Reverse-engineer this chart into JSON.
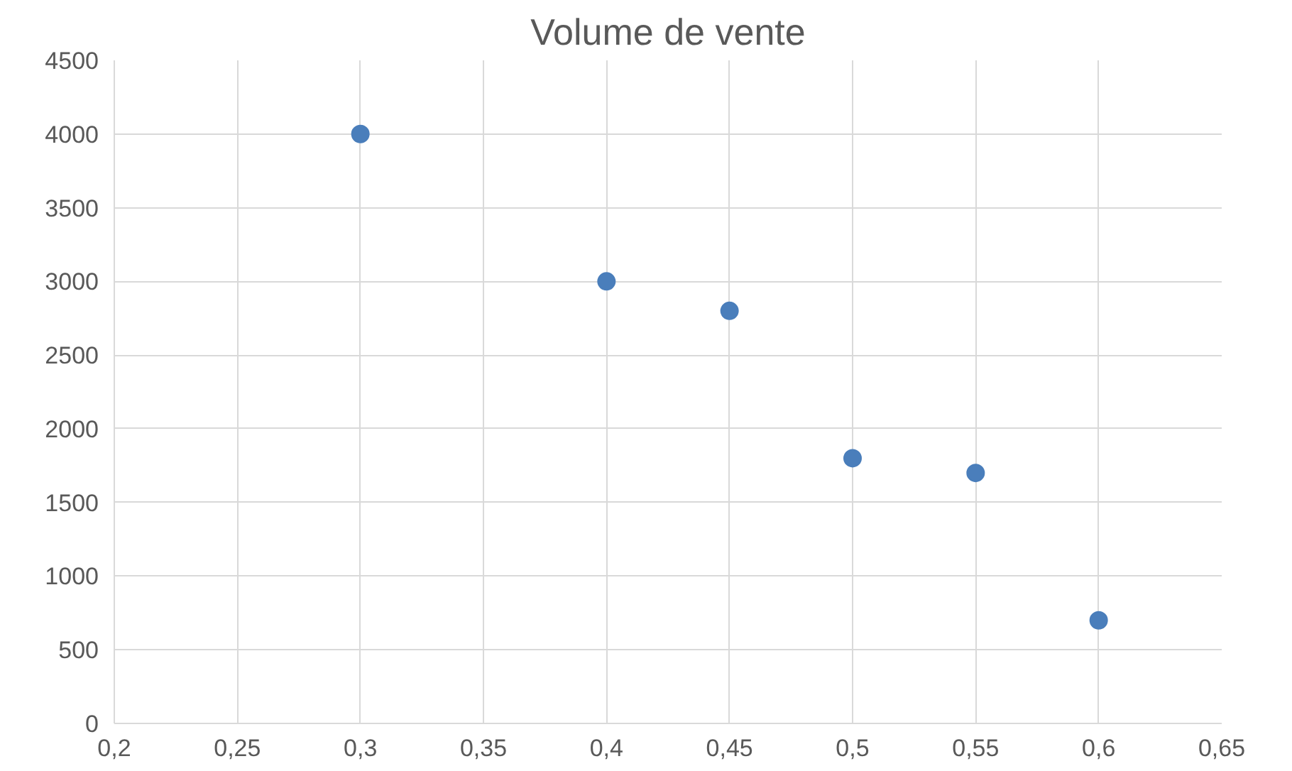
{
  "chart_data": {
    "type": "scatter",
    "title": "Volume de vente",
    "x": [
      0.3,
      0.4,
      0.45,
      0.5,
      0.55,
      0.6
    ],
    "series": [
      {
        "color": "#4a7ebb",
        "values": [
          4000,
          3000,
          2800,
          1800,
          1700,
          700
        ]
      }
    ],
    "xlim": [
      0.2,
      0.65
    ],
    "xticks": [
      {
        "value": 0.2,
        "label": "0,2"
      },
      {
        "value": 0.25,
        "label": "0,25"
      },
      {
        "value": 0.3,
        "label": "0,3"
      },
      {
        "value": 0.35,
        "label": "0,35"
      },
      {
        "value": 0.4,
        "label": "0,4"
      },
      {
        "value": 0.45,
        "label": "0,45"
      },
      {
        "value": 0.5,
        "label": "0,5"
      },
      {
        "value": 0.55,
        "label": "0,55"
      },
      {
        "value": 0.6,
        "label": "0,6"
      },
      {
        "value": 0.65,
        "label": "0,65"
      }
    ],
    "ylim": [
      0,
      4500
    ],
    "yticks": [
      0,
      500,
      1000,
      1500,
      2000,
      2500,
      3000,
      3500,
      4000,
      4500
    ],
    "grid": true,
    "marker": "circle"
  }
}
